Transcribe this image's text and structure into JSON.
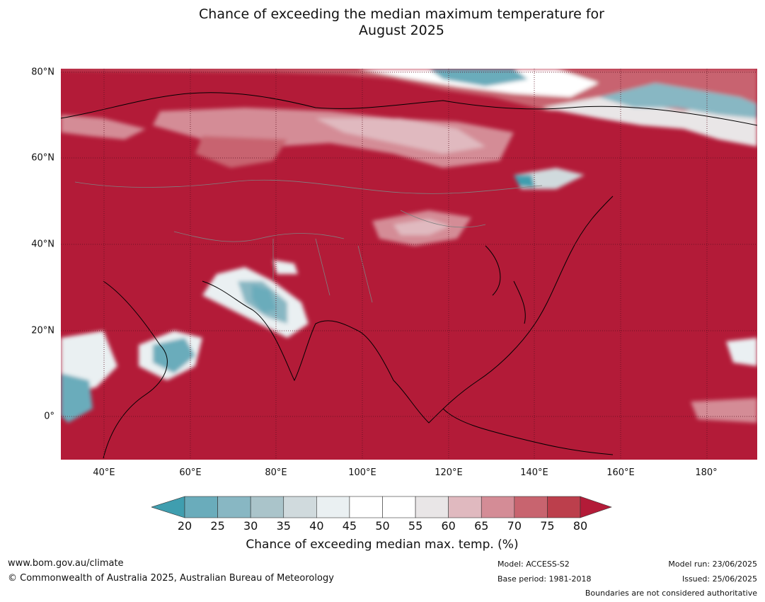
{
  "title": {
    "line1": "Chance of exceeding the median maximum temperature for",
    "line2": "August 2025"
  },
  "map": {
    "lat_ticks": [
      "80°N",
      "60°N",
      "40°N",
      "20°N",
      "0°"
    ],
    "lon_ticks": [
      "40°E",
      "60°E",
      "80°E",
      "100°E",
      "120°E",
      "140°E",
      "160°E",
      "180°"
    ],
    "colors": {
      "high": "#b31b38",
      "land_border": "#000000",
      "country_border": "#808080"
    }
  },
  "colorbar": {
    "ticks": [
      "20",
      "25",
      "30",
      "35",
      "40",
      "45",
      "50",
      "55",
      "60",
      "65",
      "70",
      "75",
      "80"
    ],
    "colors": [
      "#3f9eaf",
      "#6aacbb",
      "#88b7c3",
      "#aac4ca",
      "#d0dadd",
      "#eaf0f2",
      "#ffffff",
      "#ffffff",
      "#e9e6e7",
      "#e0b9bf",
      "#d48c96",
      "#c8646f",
      "#bc3f4c",
      "#b31b38"
    ],
    "label": "Chance of exceeding median max. temp. (%)"
  },
  "footer": {
    "website": "www.bom.gov.au/climate",
    "copyright": "© Commonwealth of Australia 2025, Australian Bureau of Meteorology",
    "model": "Model: ACCESS-S2",
    "base_period": "Base period: 1981-2018",
    "model_run": "Model run: 23/06/2025",
    "issued": "Issued: 25/06/2025",
    "disclaimer": "Boundaries are not considered authoritative"
  }
}
